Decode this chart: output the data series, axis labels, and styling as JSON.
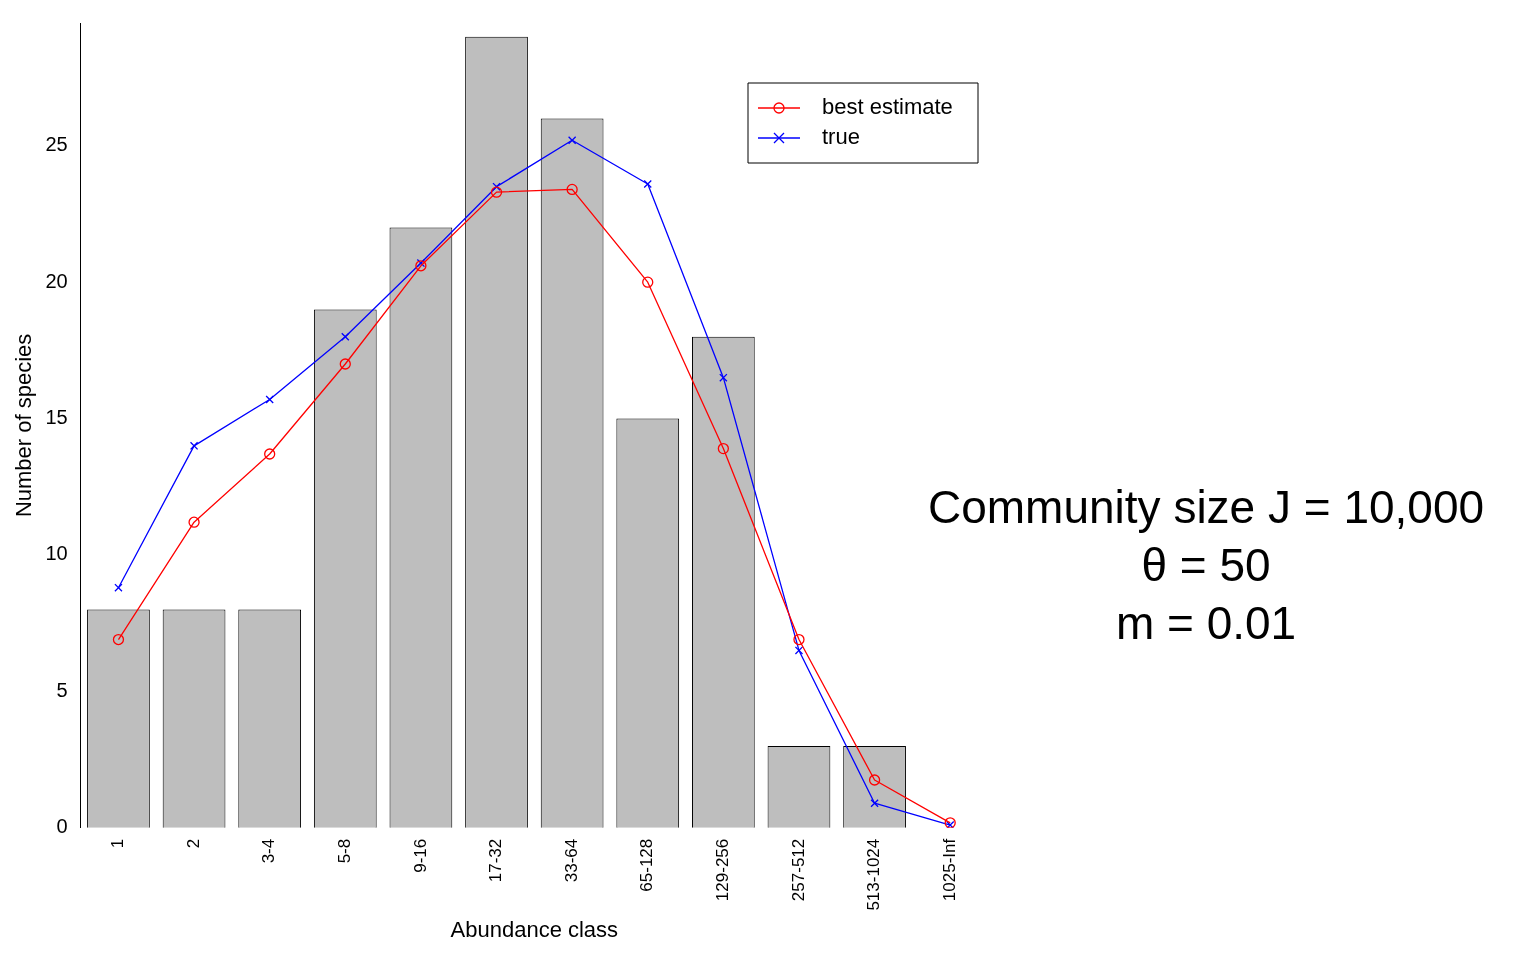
{
  "chart_data": {
    "type": "bar",
    "xlabel": "Abundance class",
    "ylabel": "Number of species",
    "categories": [
      "1",
      "2",
      "3-4",
      "5-8",
      "9-16",
      "17-32",
      "33-64",
      "65-128",
      "129-256",
      "257-512",
      "513-1024",
      "1025-Inf"
    ],
    "values": [
      8,
      8,
      8,
      19,
      22,
      29,
      26,
      15,
      18,
      3,
      3,
      0
    ],
    "color": "#bebebe",
    "series": [
      {
        "type": "line",
        "name": "best estimate",
        "color": "#ff0000",
        "marker": "circle",
        "values": [
          6.9,
          11.2,
          13.7,
          17.0,
          20.6,
          23.3,
          23.4,
          20.0,
          13.9,
          6.9,
          1.75,
          0.18
        ]
      },
      {
        "type": "line",
        "name": "true",
        "color": "#0000ff",
        "marker": "cross",
        "values": [
          8.8,
          14.0,
          15.7,
          18.0,
          20.7,
          23.5,
          25.2,
          23.6,
          16.5,
          6.5,
          0.9,
          0.1
        ]
      }
    ],
    "ylim": [
      0,
      29.5
    ],
    "yticks": [
      0,
      5,
      10,
      15,
      20,
      25
    ],
    "grid": false,
    "legend": "top right",
    "annotations": [
      "Community size J = 10,000",
      "θ = 50",
      "m = 0.01"
    ]
  }
}
